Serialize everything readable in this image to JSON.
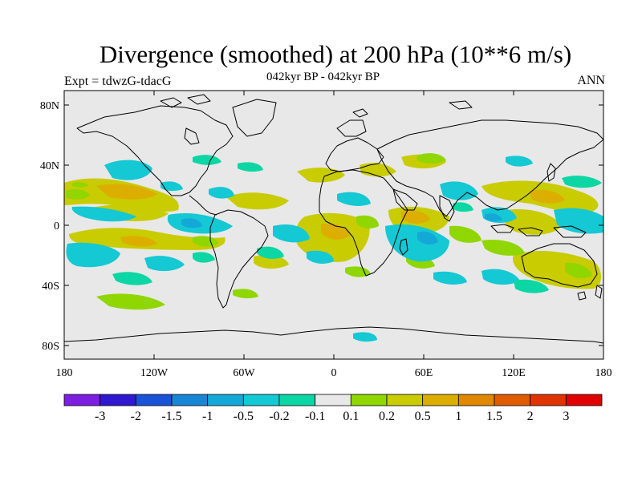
{
  "header": {
    "title": "Divergence (smoothed) at 200 hPa (10**6 m/s)",
    "left_label": "Expt = tdwzG-tdacG",
    "center_label": "042kyr BP - 042kyr BP",
    "right_label": "ANN"
  },
  "axes": {
    "x_ticks": [
      "180",
      "120W",
      "60W",
      "0",
      "60E",
      "120E",
      "180"
    ],
    "y_ticks": [
      "80N",
      "40N",
      "0",
      "40S",
      "80S"
    ]
  },
  "colorbar": {
    "labels": [
      "-3",
      "-2",
      "-1.5",
      "-1",
      "-0.5",
      "-0.2",
      "-0.1",
      "0.1",
      "0.2",
      "0.5",
      "1",
      "1.5",
      "2",
      "3"
    ],
    "colors": [
      "#7c1fe0",
      "#3018d0",
      "#1a52d8",
      "#1886d6",
      "#14a8d8",
      "#14c8d4",
      "#0cd6a4",
      "#e8e8e8",
      "#90d600",
      "#c8cc00",
      "#dcae00",
      "#e08800",
      "#e05c00",
      "#e03400",
      "#e00000"
    ]
  },
  "map": {
    "projection": "cylindrical-equidistant",
    "background_color": "#e8e8e8",
    "coastlines": true
  }
}
